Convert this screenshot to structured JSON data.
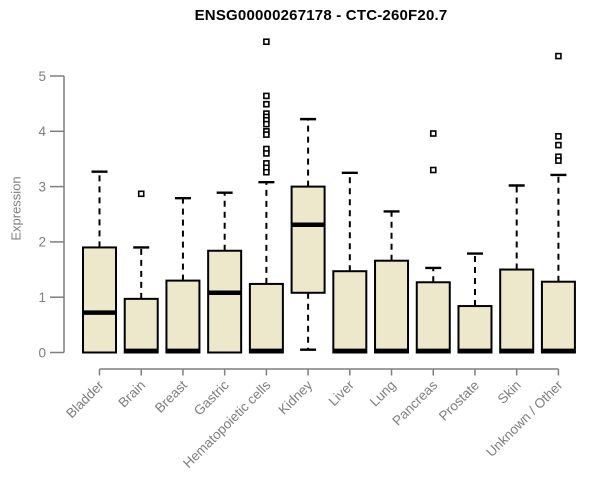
{
  "chart_data": {
    "type": "boxplot",
    "title": "ENSG00000267178 - CTC-260F20.7",
    "ylabel": "Expression",
    "xlabel": "",
    "ylim": [
      0,
      5.65
    ],
    "yticks": [
      0,
      1,
      2,
      3,
      4,
      5
    ],
    "grid": false,
    "legend": false,
    "x_label_rotation_deg": 45,
    "categories": [
      "Bladder",
      "Brain",
      "Breast",
      "Gastric",
      "Hematopoietic cells",
      "Kidney",
      "Liver",
      "Lung",
      "Pancreas",
      "Prostate",
      "Skin",
      "Unknown / Other"
    ],
    "boxes": [
      {
        "category": "Bladder",
        "whisker_low": 0,
        "q1": 0,
        "median": 0.72,
        "q3": 1.9,
        "whisker_high": 3.27,
        "outliers": []
      },
      {
        "category": "Brain",
        "whisker_low": 0,
        "q1": 0,
        "median": 0.03,
        "q3": 0.97,
        "whisker_high": 1.9,
        "outliers": [
          2.87
        ]
      },
      {
        "category": "Breast",
        "whisker_low": 0,
        "q1": 0,
        "median": 0.03,
        "q3": 1.3,
        "whisker_high": 2.79,
        "outliers": []
      },
      {
        "category": "Gastric",
        "whisker_low": 0,
        "q1": 0,
        "median": 1.08,
        "q3": 1.84,
        "whisker_high": 2.89,
        "outliers": []
      },
      {
        "category": "Hematopoietic cells",
        "whisker_low": 0,
        "q1": 0,
        "median": 0.03,
        "q3": 1.24,
        "whisker_high": 3.08,
        "outliers": [
          5.62,
          4.64,
          4.49,
          4.32,
          4.26,
          4.2,
          4.13,
          4.0,
          3.94,
          3.68,
          3.6,
          3.42,
          3.34,
          3.26
        ]
      },
      {
        "category": "Kidney",
        "whisker_low": 0.05,
        "q1": 1.08,
        "median": 2.31,
        "q3": 3.0,
        "whisker_high": 4.22,
        "outliers": []
      },
      {
        "category": "Liver",
        "whisker_low": 0,
        "q1": 0,
        "median": 0.03,
        "q3": 1.47,
        "whisker_high": 3.25,
        "outliers": []
      },
      {
        "category": "Lung",
        "whisker_low": 0,
        "q1": 0,
        "median": 0.03,
        "q3": 1.66,
        "whisker_high": 2.55,
        "outliers": []
      },
      {
        "category": "Pancreas",
        "whisker_low": 0,
        "q1": 0,
        "median": 0.03,
        "q3": 1.27,
        "whisker_high": 1.53,
        "outliers": [
          3.96,
          3.3
        ]
      },
      {
        "category": "Prostate",
        "whisker_low": 0,
        "q1": 0,
        "median": 0.03,
        "q3": 0.84,
        "whisker_high": 1.79,
        "outliers": []
      },
      {
        "category": "Skin",
        "whisker_low": 0,
        "q1": 0,
        "median": 0.03,
        "q3": 1.5,
        "whisker_high": 3.02,
        "outliers": []
      },
      {
        "category": "Unknown / Other",
        "whisker_low": 0,
        "q1": 0,
        "median": 0.03,
        "q3": 1.28,
        "whisker_high": 3.21,
        "outliers": [
          5.36,
          3.91,
          3.75,
          3.54,
          3.47
        ]
      }
    ],
    "colors": {
      "box_fill": "#EDE8CC",
      "box_stroke": "#000000",
      "median": "#000000",
      "whisker": "#000000",
      "outlier_fill": "#FFFFFF",
      "outlier_stroke": "#000000",
      "axis": "#7E7E7E",
      "tick_label": "#7E7E7E",
      "title": "#000000",
      "background": "#FFFFFF"
    }
  }
}
